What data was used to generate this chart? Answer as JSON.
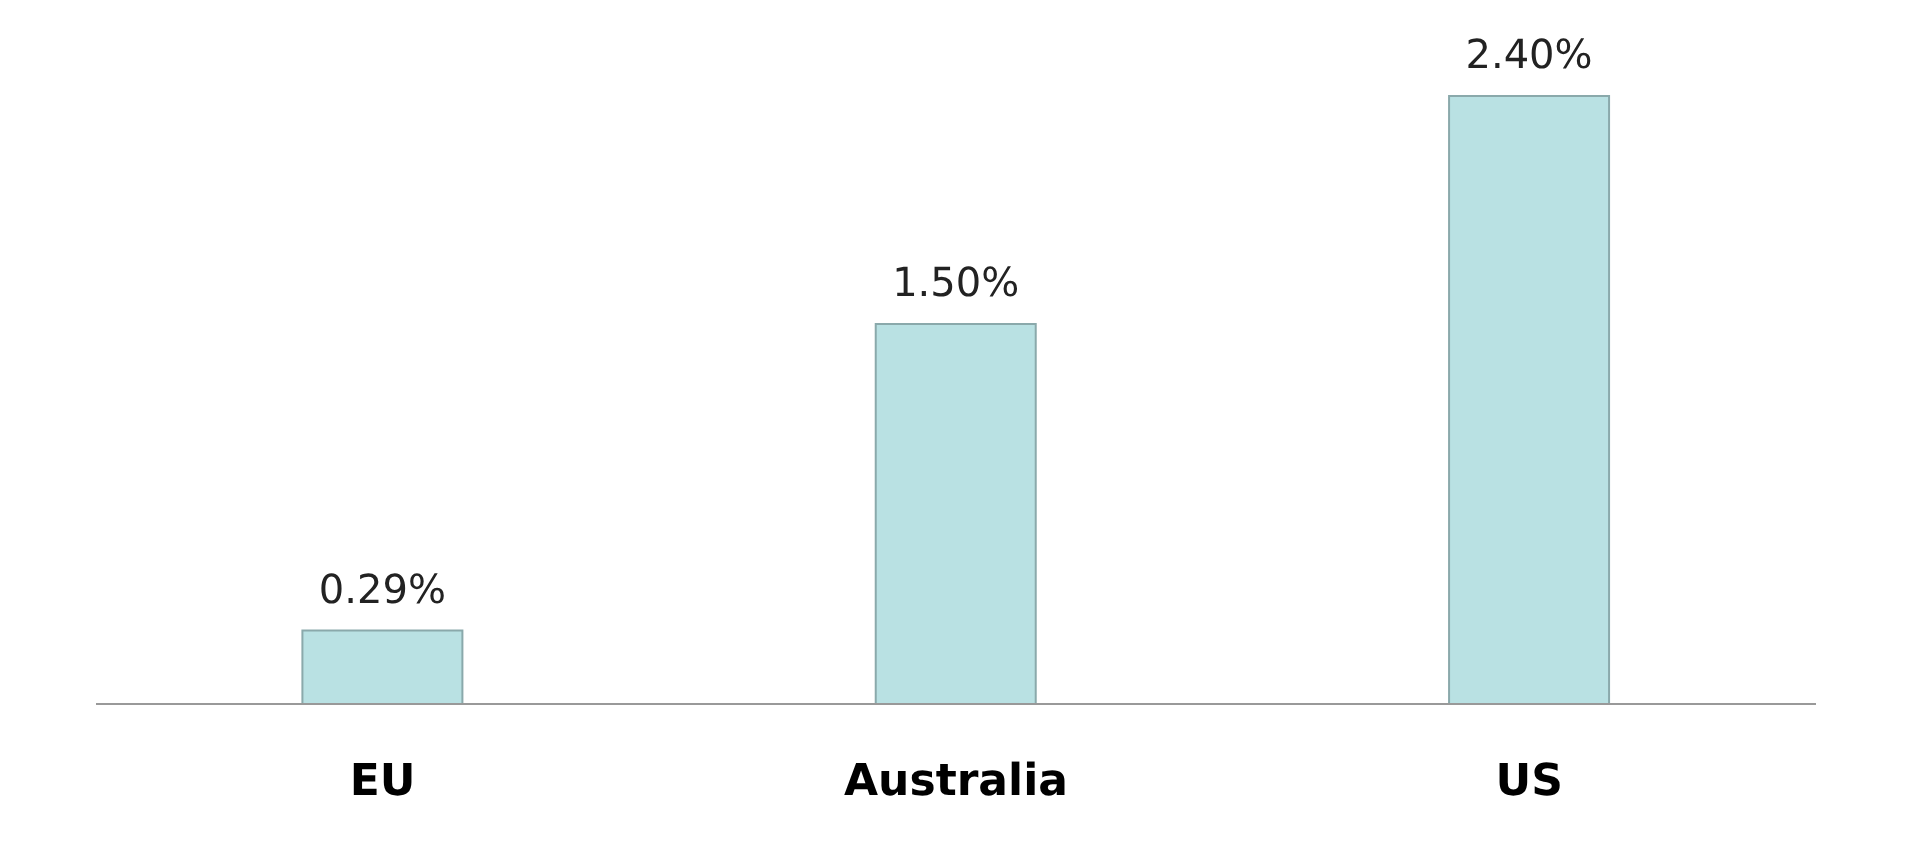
{
  "chart_data": {
    "type": "bar",
    "categories": [
      "EU",
      "Australia",
      "US"
    ],
    "values": [
      0.29,
      1.5,
      2.4
    ],
    "value_labels": [
      "0.29%",
      "1.50%",
      "2.40%"
    ],
    "color": "#b9e1e3"
  }
}
